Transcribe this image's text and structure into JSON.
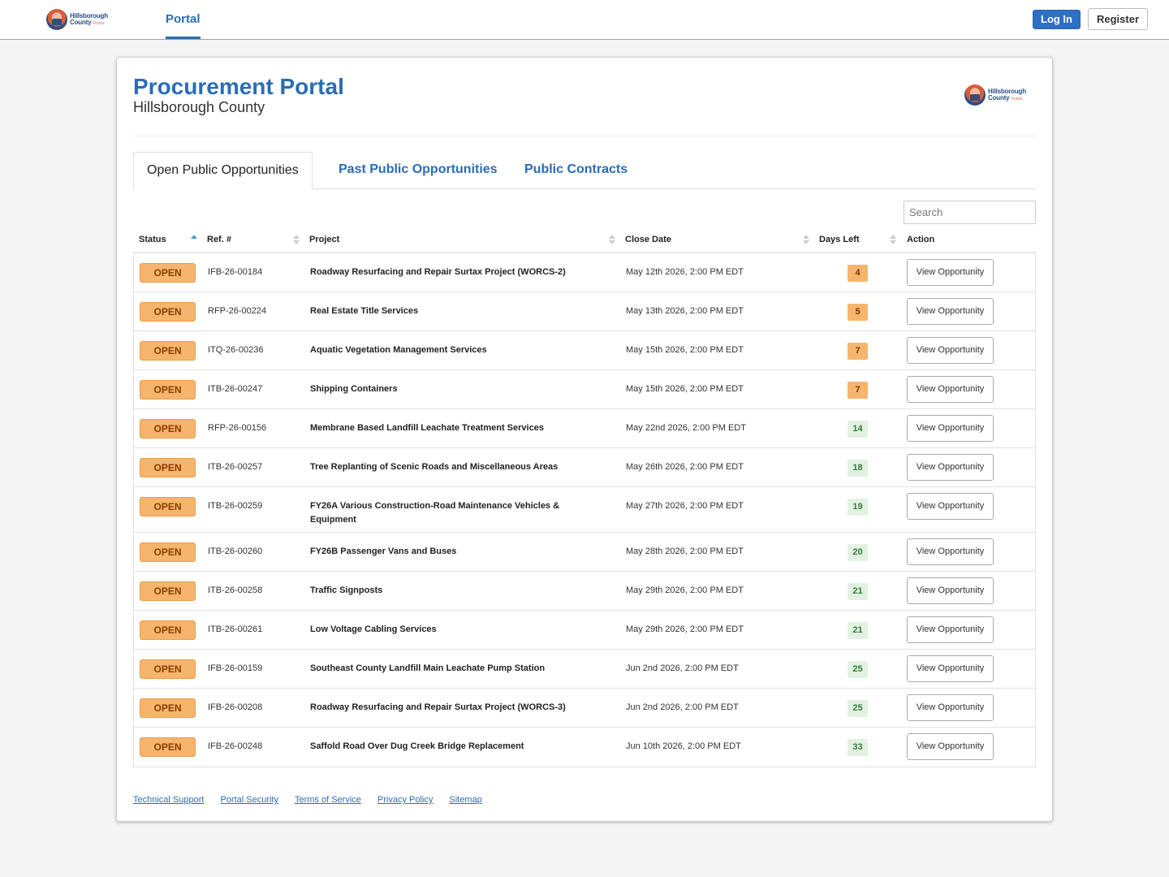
{
  "brand": {
    "line1": "Hillsborough",
    "line2": "County",
    "state": "Florida"
  },
  "nav": {
    "portal_tab": "Portal",
    "login_label": "Log In",
    "register_label": "Register"
  },
  "header": {
    "title": "Procurement Portal",
    "subtitle": "Hillsborough County"
  },
  "tabs": [
    {
      "label": "Open Public Opportunities",
      "active": true
    },
    {
      "label": "Past Public Opportunities",
      "active": false
    },
    {
      "label": "Public Contracts",
      "active": false
    }
  ],
  "search": {
    "placeholder": "Search"
  },
  "table": {
    "columns": [
      "Status",
      "Ref. #",
      "Project",
      "Close Date",
      "Days Left",
      "Action"
    ],
    "rows": [
      {
        "status": "OPEN",
        "ref": "IFB-26-00184",
        "project": "Roadway Resurfacing and Repair Surtax Project (WORCS-2)",
        "close": "May 12th 2026, 2:00 PM EDT",
        "days": "4",
        "action": "View Opportunity"
      },
      {
        "status": "OPEN",
        "ref": "RFP-26-00224",
        "project": "Real Estate Title Services",
        "close": "May 13th 2026, 2:00 PM EDT",
        "days": "5",
        "action": "View Opportunity"
      },
      {
        "status": "OPEN",
        "ref": "ITQ-26-00236",
        "project": "Aquatic Vegetation Management Services",
        "close": "May 15th 2026, 2:00 PM EDT",
        "days": "7",
        "action": "View Opportunity"
      },
      {
        "status": "OPEN",
        "ref": "ITB-26-00247",
        "project": "Shipping Containers",
        "close": "May 15th 2026, 2:00 PM EDT",
        "days": "7",
        "action": "View Opportunity"
      },
      {
        "status": "OPEN",
        "ref": "RFP-26-00156",
        "project": "Membrane Based Landfill Leachate Treatment Services",
        "close": "May 22nd 2026, 2:00 PM EDT",
        "days": "14",
        "action": "View Opportunity"
      },
      {
        "status": "OPEN",
        "ref": "ITB-26-00257",
        "project": "Tree Replanting of Scenic Roads and Miscellaneous Areas",
        "close": "May 26th 2026, 2:00 PM EDT",
        "days": "18",
        "action": "View Opportunity"
      },
      {
        "status": "OPEN",
        "ref": "ITB-26-00259",
        "project": "FY26A Various Construction-Road Maintenance Vehicles & Equipment",
        "close": "May 27th 2026, 2:00 PM EDT",
        "days": "19",
        "action": "View Opportunity"
      },
      {
        "status": "OPEN",
        "ref": "ITB-26-00260",
        "project": "FY26B Passenger Vans and Buses",
        "close": "May 28th 2026, 2:00 PM EDT",
        "days": "20",
        "action": "View Opportunity"
      },
      {
        "status": "OPEN",
        "ref": "ITB-26-00258",
        "project": "Traffic Signposts",
        "close": "May 29th 2026, 2:00 PM EDT",
        "days": "21",
        "action": "View Opportunity"
      },
      {
        "status": "OPEN",
        "ref": "ITB-26-00261",
        "project": "Low Voltage Cabling Services",
        "close": "May 29th 2026, 2:00 PM EDT",
        "days": "21",
        "action": "View Opportunity"
      },
      {
        "status": "OPEN",
        "ref": "IFB-26-00159",
        "project": "Southeast County Landfill Main Leachate Pump Station",
        "close": "Jun 2nd 2026, 2:00 PM EDT",
        "days": "25",
        "action": "View Opportunity"
      },
      {
        "status": "OPEN",
        "ref": "IFB-26-00208",
        "project": "Roadway Resurfacing and Repair Surtax Project (WORCS-3)",
        "close": "Jun 2nd 2026, 2:00 PM EDT",
        "days": "25",
        "action": "View Opportunity"
      },
      {
        "status": "OPEN",
        "ref": "IFB-26-00248",
        "project": "Saffold Road Over Dug Creek Bridge Replacement",
        "close": "Jun 10th 2026, 2:00 PM EDT",
        "days": "33",
        "action": "View Opportunity"
      }
    ]
  },
  "footer": {
    "links": [
      "Technical Support",
      "Portal Security",
      "Terms of Service",
      "Privacy Policy",
      "Sitemap"
    ]
  },
  "colors": {
    "primary": "#2a6db5",
    "open_badge": "#f6b56d",
    "days_warn": "#f6b56d",
    "days_ok": "#e3f1e3"
  }
}
